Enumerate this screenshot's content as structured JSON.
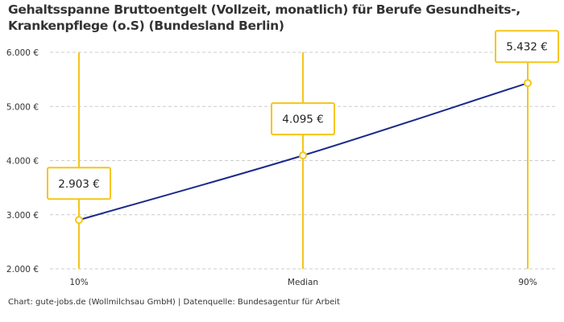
{
  "chart_data": {
    "type": "line",
    "title": "Gehaltsspanne Bruttoentgelt (Vollzeit, monatlich) für Berufe Gesundheits-, Krankenpflege (o.S) (Bundesland Berlin)",
    "categories": [
      "10%",
      "Median",
      "90%"
    ],
    "values": [
      2903,
      4095,
      5432
    ],
    "data_labels": [
      "2.903 €",
      "4.095 €",
      "5.432 €"
    ],
    "ylim": [
      2000,
      6000
    ],
    "yticks": [
      2000,
      3000,
      4000,
      5000,
      6000
    ],
    "ytick_labels": [
      "2.000 €",
      "3.000 €",
      "4.000 €",
      "5.000 €",
      "6.000 €"
    ],
    "grid": true,
    "smooth": true,
    "colors": {
      "line": "#1a2a8c",
      "accent": "#f5c518",
      "grid": "#cccccc"
    }
  },
  "source": "Chart: gute-jobs.de (Wollmilchsau GmbH) | Datenquelle: Bundesagentur für Arbeit"
}
